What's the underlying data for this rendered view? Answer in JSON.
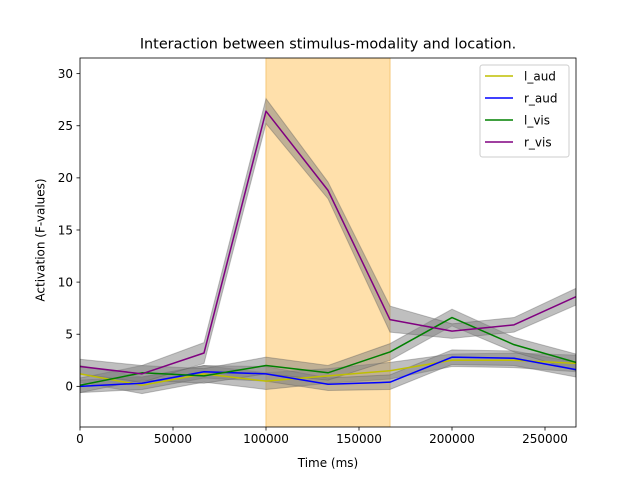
{
  "chart_data": {
    "type": "line",
    "title": "Interaction between stimulus-modality and location.",
    "xlabel": "Time (ms)",
    "ylabel": "Activation (F-values)",
    "xlim": [
      0,
      266667
    ],
    "ylim": [
      -3.9,
      31.5
    ],
    "xticks": [
      0,
      50000,
      100000,
      150000,
      200000,
      250000
    ],
    "xtick_labels": [
      "0",
      "50000",
      "100000",
      "150000",
      "200000",
      "250000"
    ],
    "yticks": [
      0,
      5,
      10,
      15,
      20,
      25,
      30
    ],
    "ytick_labels": [
      "0",
      "5",
      "10",
      "15",
      "20",
      "25",
      "30"
    ],
    "highlight_span": {
      "x0": 100000,
      "x1": 166667,
      "color": "#ffe0ab"
    },
    "band_color": "#808080",
    "x": [
      0,
      33333,
      66667,
      100000,
      133333,
      166667,
      200000,
      233333,
      266667
    ],
    "legend_position": "upper right",
    "series": [
      {
        "name": "l_aud",
        "color": "#bfbf00",
        "values": [
          1.2,
          0.1,
          1.2,
          0.5,
          1.0,
          1.5,
          2.5,
          2.5,
          2.2
        ],
        "lower": [
          0.4,
          -0.7,
          0.4,
          -0.3,
          0.3,
          0.7,
          1.9,
          1.8,
          1.4
        ],
        "upper": [
          2.0,
          0.9,
          2.0,
          1.3,
          1.7,
          2.3,
          3.1,
          3.2,
          3.0
        ]
      },
      {
        "name": "r_aud",
        "color": "#0000ff",
        "values": [
          0.0,
          0.3,
          1.4,
          1.2,
          0.2,
          0.4,
          2.8,
          2.7,
          1.6
        ],
        "lower": [
          -0.6,
          -0.3,
          0.8,
          0.5,
          -0.4,
          -0.3,
          2.1,
          2.0,
          0.9
        ],
        "upper": [
          0.6,
          0.9,
          2.0,
          1.9,
          0.8,
          1.1,
          3.5,
          3.4,
          2.3
        ]
      },
      {
        "name": "l_vis",
        "color": "#008000",
        "values": [
          0.1,
          1.3,
          1.0,
          2.0,
          1.3,
          3.3,
          6.6,
          4.0,
          2.3
        ],
        "lower": [
          -0.6,
          0.6,
          0.3,
          1.2,
          0.6,
          2.5,
          5.8,
          3.3,
          1.5
        ],
        "upper": [
          0.8,
          2.0,
          1.7,
          2.8,
          2.0,
          4.1,
          7.4,
          4.7,
          3.1
        ]
      },
      {
        "name": "r_vis",
        "color": "#800080",
        "values": [
          1.9,
          1.2,
          3.2,
          26.4,
          18.8,
          6.4,
          5.3,
          5.9,
          8.6
        ],
        "lower": [
          1.2,
          0.4,
          2.2,
          25.2,
          18.0,
          5.2,
          4.6,
          5.2,
          7.8
        ],
        "upper": [
          2.6,
          2.0,
          4.2,
          27.6,
          19.6,
          7.7,
          6.0,
          6.6,
          9.4
        ]
      }
    ]
  }
}
